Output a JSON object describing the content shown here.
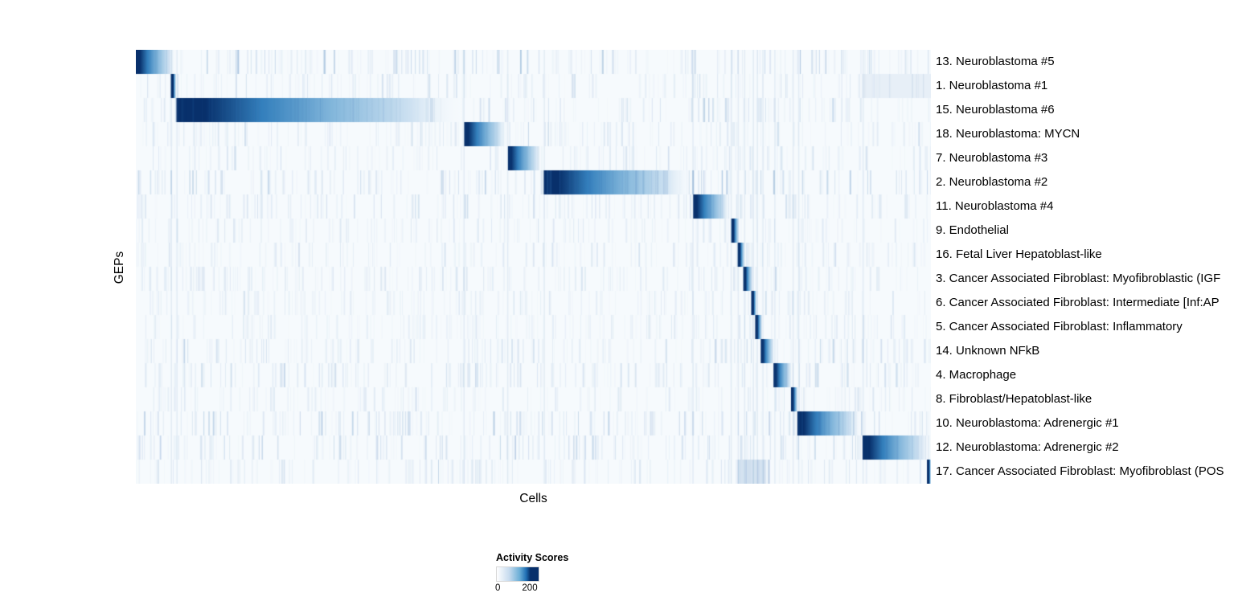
{
  "chart_data": {
    "type": "heatmap",
    "title": "",
    "xlabel": "Cells",
    "ylabel": "GEPs",
    "grid": false,
    "x_axis": {
      "tick_labels": []
    },
    "value_range": [
      0,
      200
    ],
    "legend": {
      "title": "Activity Scores",
      "min": 0,
      "max": 200,
      "tick_labels": [
        "0",
        "200"
      ],
      "position": "bottom-center",
      "gradient": [
        [
          0,
          "#ffffff"
        ],
        [
          0.3,
          "#c6dbef"
        ],
        [
          0.55,
          "#6baed6"
        ],
        [
          0.7,
          "#2171b5"
        ],
        [
          0.8,
          "#08306b"
        ],
        [
          1,
          "#08306b"
        ]
      ]
    },
    "colors": {
      "background": "#f6fafd",
      "low": "#cfe2f2",
      "mid2": "#85b8dc",
      "mid1": "#3480bd",
      "high": "#08306b",
      "noise": "#3b76b5"
    },
    "rows": [
      {
        "label": "13. Neuroblastoma #5",
        "block": [
          0.0,
          0.05
        ],
        "noise": 0.5
      },
      {
        "label": "1. Neuroblastoma #1",
        "block": [
          0.044,
          0.051
        ],
        "noise": 0.3,
        "bands": [
          [
            0.914,
            1.0,
            0.08
          ]
        ]
      },
      {
        "label": "15. Neuroblastoma #6",
        "block": [
          0.051,
          0.412
        ],
        "noise": 0.45
      },
      {
        "label": "18. Neuroblastoma: MYCN",
        "block": [
          0.413,
          0.467
        ],
        "noise": 0.3
      },
      {
        "label": "7. Neuroblastoma #3",
        "block": [
          0.468,
          0.51
        ],
        "noise": 0.3
      },
      {
        "label": "2. Neuroblastoma #2",
        "block": [
          0.513,
          0.7
        ],
        "noise": 0.6
      },
      {
        "label": "11. Neuroblastoma #4",
        "block": [
          0.701,
          0.748
        ],
        "noise": 0.35
      },
      {
        "label": "9. Endothelial",
        "block": [
          0.749,
          0.759
        ],
        "noise": 0.25
      },
      {
        "label": "16. Fetal Liver Hepatoblast-like",
        "block": [
          0.757,
          0.766
        ],
        "noise": 0.25
      },
      {
        "label": "3. Cancer Associated Fibroblast: Myofibroblastic (IGF",
        "block": [
          0.764,
          0.776
        ],
        "noise": 0.3
      },
      {
        "label": "6. Cancer Associated Fibroblast: Intermediate [Inf:AP",
        "block": [
          0.774,
          0.781
        ],
        "noise": 0.25
      },
      {
        "label": "5. Cancer Associated Fibroblast: Inflammatory",
        "block": [
          0.779,
          0.788
        ],
        "noise": 0.25
      },
      {
        "label": "14. Unknown NFkB",
        "block": [
          0.786,
          0.803
        ],
        "noise": 0.35
      },
      {
        "label": "4. Macrophage",
        "block": [
          0.802,
          0.826
        ],
        "noise": 0.4
      },
      {
        "label": "8. Fibroblast/Hepatoblast-like",
        "block": [
          0.824,
          0.833
        ],
        "noise": 0.25
      },
      {
        "label": "10. Neuroblastoma: Adrenergic #1",
        "block": [
          0.832,
          0.913
        ],
        "noise": 0.55
      },
      {
        "label": "12. Neuroblastoma: Adrenergic #2",
        "block": [
          0.914,
          1.0
        ],
        "noise": 0.45
      },
      {
        "label": "17. Cancer Associated Fibroblast: Myofibroblast (POS",
        "block": [
          0.995,
          1.0
        ],
        "noise": 0.3,
        "bands": [
          [
            0.757,
            0.792,
            0.18
          ]
        ]
      }
    ],
    "column_seams": [
      0.044,
      0.051,
      0.412,
      0.467,
      0.513,
      0.7,
      0.748,
      0.757,
      0.765,
      0.776,
      0.781,
      0.788,
      0.803,
      0.826,
      0.833,
      0.914
    ]
  }
}
